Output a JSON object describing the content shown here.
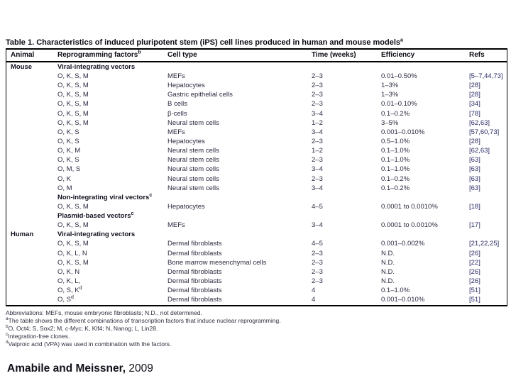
{
  "table": {
    "title": "Table 1. Characteristics of induced pluripotent stem (iPS) cell lines produced in human and mouse models",
    "title_sup": "a",
    "header": {
      "animal": "Animal",
      "factors": "Reprogramming factors",
      "factors_sup": "b",
      "cell_type": "Cell type",
      "time": "Time (weeks)",
      "efficiency": "Efficiency",
      "refs": "Refs"
    },
    "rows": [
      {
        "section": true,
        "animal": "Mouse",
        "factors": "Viral-integrating vectors",
        "fsup": "",
        "cell": "",
        "time": "",
        "eff": "",
        "refs": ""
      },
      {
        "section": false,
        "animal": "",
        "factors": "O, K, S, M",
        "fsup": "",
        "cell": "MEFs",
        "time": "2–3",
        "eff": "0.01–0.50%",
        "refs": "[5–7,44,73]"
      },
      {
        "section": false,
        "animal": "",
        "factors": "O, K, S, M",
        "fsup": "",
        "cell": "Hepatocytes",
        "time": "2–3",
        "eff": "1–3%",
        "refs": "[28]"
      },
      {
        "section": false,
        "animal": "",
        "factors": "O, K, S, M",
        "fsup": "",
        "cell": "Gastric epithelial cells",
        "time": "2–3",
        "eff": "1–3%",
        "refs": "[28]"
      },
      {
        "section": false,
        "animal": "",
        "factors": "O, K, S, M",
        "fsup": "",
        "cell": "B cells",
        "time": "2–3",
        "eff": "0.01–0.10%",
        "refs": "[34]"
      },
      {
        "section": false,
        "animal": "",
        "factors": "O, K, S, M",
        "fsup": "",
        "cell": "β-cells",
        "time": "3–4",
        "eff": "0.1–0.2%",
        "refs": "[78]"
      },
      {
        "section": false,
        "animal": "",
        "factors": "O, K, S, M",
        "fsup": "",
        "cell": "Neural stem cells",
        "time": "1–2",
        "eff": "3–5%",
        "refs": "[62,63]"
      },
      {
        "section": false,
        "animal": "",
        "factors": "O, K, S",
        "fsup": "",
        "cell": "MEFs",
        "time": "3–4",
        "eff": "0.001–0.010%",
        "refs": "[57,60,73]"
      },
      {
        "section": false,
        "animal": "",
        "factors": "O, K, S",
        "fsup": "",
        "cell": "Hepatocytes",
        "time": "2–3",
        "eff": "0.5–1.0%",
        "refs": "[28]"
      },
      {
        "section": false,
        "animal": "",
        "factors": "O, K, M",
        "fsup": "",
        "cell": "Neural stem cells",
        "time": "1–2",
        "eff": "0.1–1.0%",
        "refs": "[62,63]"
      },
      {
        "section": false,
        "animal": "",
        "factors": "O, K, S",
        "fsup": "",
        "cell": "Neural stem cells",
        "time": "2–3",
        "eff": "0.1–1.0%",
        "refs": "[63]"
      },
      {
        "section": false,
        "animal": "",
        "factors": "O, M, S",
        "fsup": "",
        "cell": "Neural stem cells",
        "time": "3–4",
        "eff": "0.1–1.0%",
        "refs": "[63]"
      },
      {
        "section": false,
        "animal": "",
        "factors": "O, K",
        "fsup": "",
        "cell": "Neural stem cells",
        "time": "2–3",
        "eff": "0.1–0.2%",
        "refs": "[63]"
      },
      {
        "section": false,
        "animal": "",
        "factors": "O, M",
        "fsup": "",
        "cell": "Neural stem cells",
        "time": "3–4",
        "eff": "0.1–0.2%",
        "refs": "[63]"
      },
      {
        "section": true,
        "animal": "",
        "factors": "Non-integrating viral vectors",
        "fsup": "c",
        "cell": "",
        "time": "",
        "eff": "",
        "refs": ""
      },
      {
        "section": false,
        "animal": "",
        "factors": "O, K, S, M",
        "fsup": "",
        "cell": "Hepatocytes",
        "time": "4–5",
        "eff": "0.0001 to 0.0010%",
        "refs": "[18]"
      },
      {
        "section": true,
        "animal": "",
        "factors": "Plasmid-based vectors",
        "fsup": "c",
        "cell": "",
        "time": "",
        "eff": "",
        "refs": ""
      },
      {
        "section": false,
        "animal": "",
        "factors": "O, K, S, M",
        "fsup": "",
        "cell": "MEFs",
        "time": "3–4",
        "eff": "0.0001 to 0.0010%",
        "refs": "[17]"
      },
      {
        "section": true,
        "animal": "Human",
        "factors": "Viral-integrating vectors",
        "fsup": "",
        "cell": "",
        "time": "",
        "eff": "",
        "refs": ""
      },
      {
        "section": false,
        "animal": "",
        "factors": "O, K, S, M",
        "fsup": "",
        "cell": "Dermal fibroblasts",
        "time": "4–5",
        "eff": "0.001–0.002%",
        "refs": "[21,22,25]"
      },
      {
        "section": false,
        "animal": "",
        "factors": "O, K, L, N",
        "fsup": "",
        "cell": "Dermal fibroblasts",
        "time": "2–3",
        "eff": "N.D.",
        "refs": "[26]"
      },
      {
        "section": false,
        "animal": "",
        "factors": "O, K, S, M",
        "fsup": "",
        "cell": "Bone marrow mesenchymal cells",
        "time": "2–3",
        "eff": "N.D.",
        "refs": "[22]"
      },
      {
        "section": false,
        "animal": "",
        "factors": "O, K, N",
        "fsup": "",
        "cell": "Dermal fibroblasts",
        "time": "2–3",
        "eff": "N.D.",
        "refs": "[26]"
      },
      {
        "section": false,
        "animal": "",
        "factors": "O, K, L,",
        "fsup": "",
        "cell": "Dermal fibroblasts",
        "time": "2–3",
        "eff": "N.D.",
        "refs": "[26]"
      },
      {
        "section": false,
        "animal": "",
        "factors": "O, S, K",
        "fsup": "d",
        "cell": "Dermal fibroblasts",
        "time": "4",
        "eff": "0.1–1.0%",
        "refs": "[51]"
      },
      {
        "section": false,
        "animal": "",
        "factors": "O, S",
        "fsup": "d",
        "cell": "Dermal fibroblasts",
        "time": "4",
        "eff": "0.001–0.010%",
        "refs": "[51]"
      }
    ],
    "footnotes": [
      {
        "sup": "",
        "text": "Abbreviations: MEFs, mouse embryonic fibroblasts; N.D., not determined."
      },
      {
        "sup": "a",
        "text": "The table shows the different combinations of transcription factors that induce nuclear reprogramming."
      },
      {
        "sup": "b",
        "text": "O, Oct4; S, Sox2; M, c-Myc; K, Klf4; N, Nanog; L, Lin28."
      },
      {
        "sup": "c",
        "text": "Integration-free clones."
      },
      {
        "sup": "d",
        "text": "Valproic acid (VPA) was used in combination with the factors."
      }
    ]
  },
  "citation": {
    "authors": "Amabile and Meissner,",
    "year": " 2009"
  },
  "colors": {
    "border": "#000000",
    "body_text": "#2a2a40",
    "refs_text": "#2b2b66",
    "background": "#ffffff"
  }
}
